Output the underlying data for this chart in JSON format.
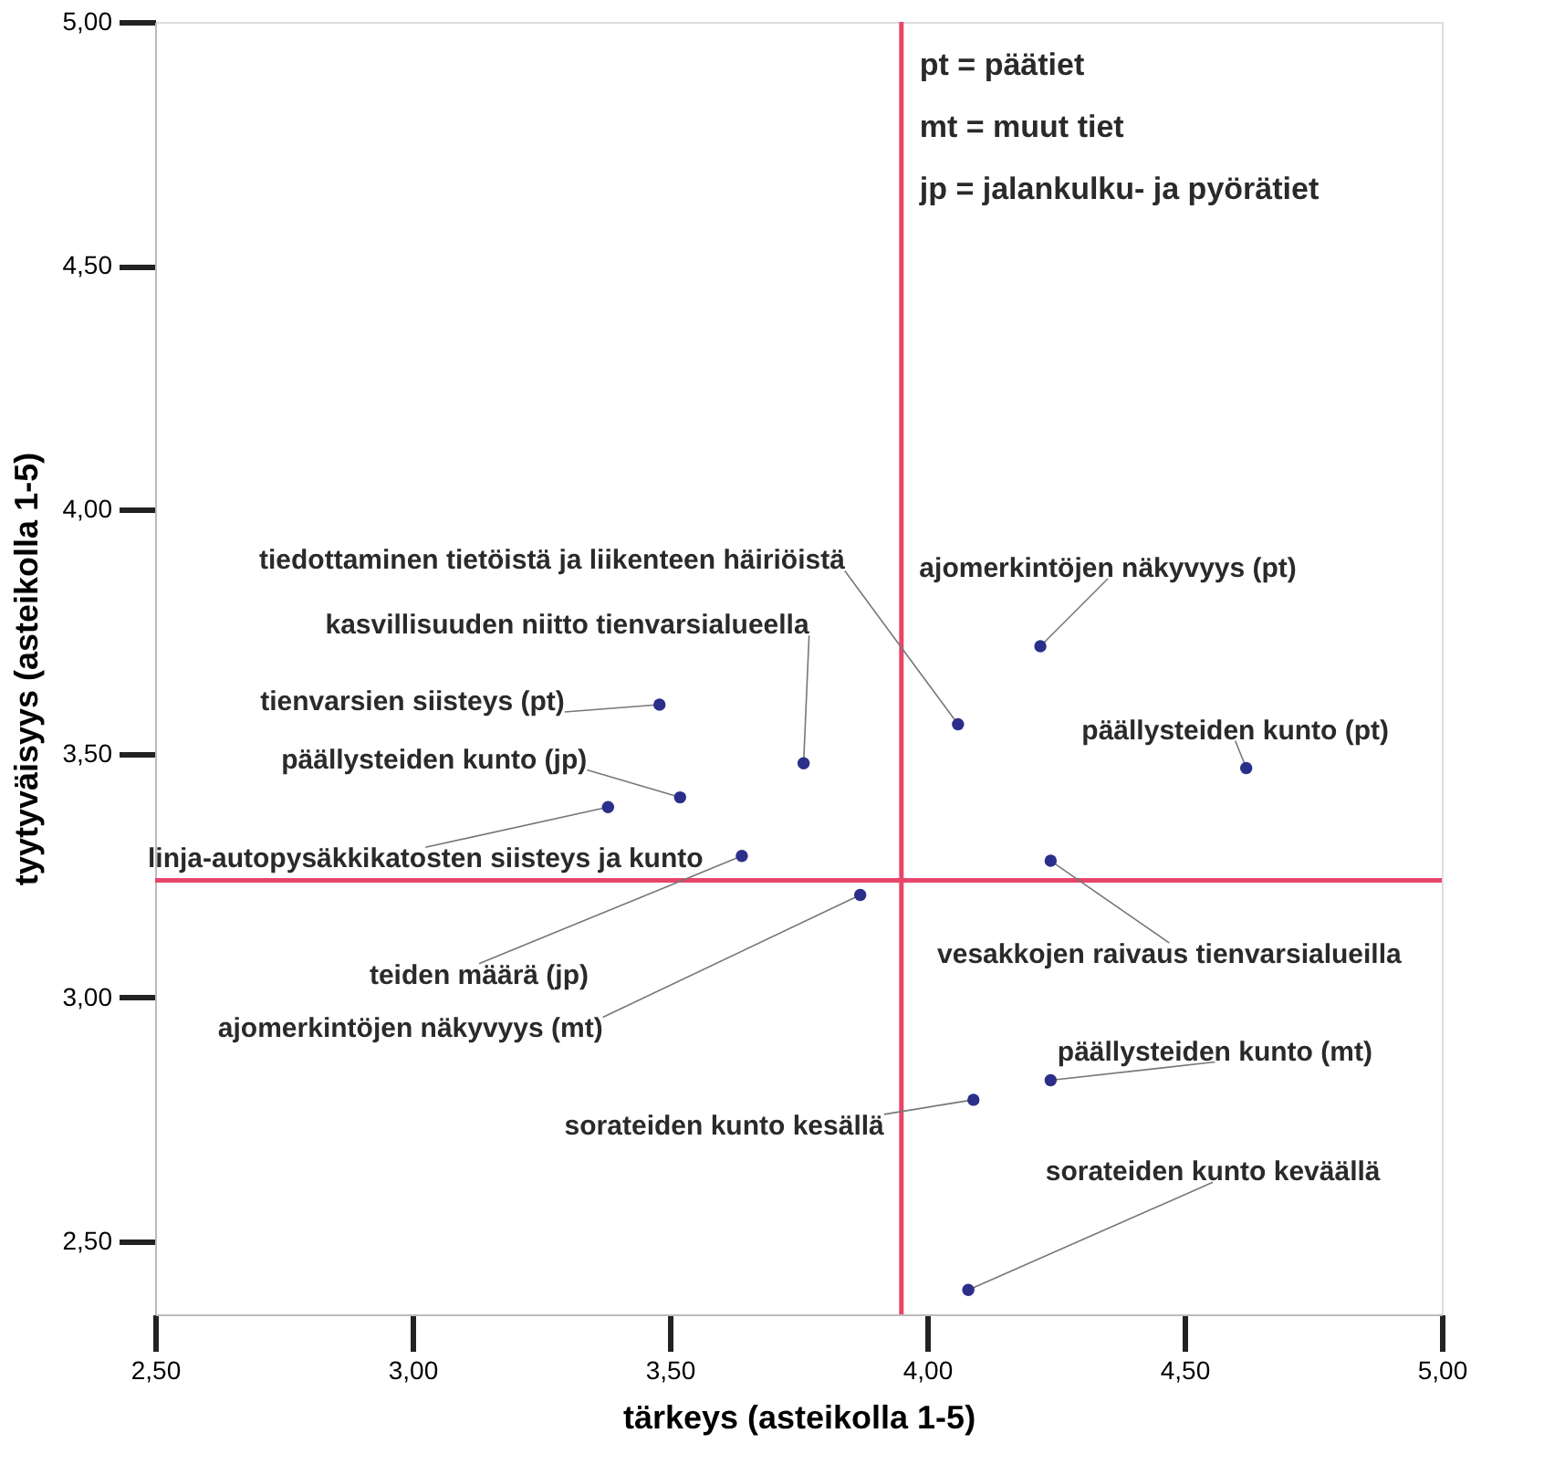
{
  "chart_data": {
    "type": "scatter",
    "xlabel": "tärkeys (asteikolla 1-5)",
    "ylabel": "tyytyväisyys (asteikolla 1-5)",
    "x": [
      4.22,
      4.06,
      3.76,
      3.48,
      4.62,
      3.52,
      3.38,
      3.64,
      3.87,
      4.24,
      4.24,
      4.09,
      4.08
    ],
    "series": [
      {
        "color": "#2b2f8a",
        "values": [
          3.72,
          3.56,
          3.48,
          3.6,
          3.47,
          3.41,
          3.39,
          3.29,
          3.21,
          3.28,
          2.83,
          2.79,
          2.4
        ]
      }
    ],
    "xlim": [
      2.5,
      5.0
    ],
    "ylim": [
      2.35,
      5.0
    ],
    "xticks": [
      {
        "value": 2.5,
        "label": "2,50"
      },
      {
        "value": 3.0,
        "label": "3,00"
      },
      {
        "value": 3.5,
        "label": "3,50"
      },
      {
        "value": 4.0,
        "label": "4,00"
      },
      {
        "value": 4.5,
        "label": "4,50"
      },
      {
        "value": 5.0,
        "label": "5,00"
      }
    ],
    "yticks": [
      {
        "value": 2.5,
        "label": "2,50"
      },
      {
        "value": 3.0,
        "label": "3,00"
      },
      {
        "value": 3.5,
        "label": "3,50"
      },
      {
        "value": 4.0,
        "label": "4,00"
      },
      {
        "value": 4.5,
        "label": "4,50"
      },
      {
        "value": 5.0,
        "label": "5,00"
      }
    ],
    "ref_lines": [
      {
        "axis": "x",
        "value": 3.95,
        "color": "#e8456a"
      },
      {
        "axis": "y",
        "value": 3.24,
        "color": "#e8456a"
      }
    ],
    "marker": "circle",
    "grid": false,
    "annotations": [
      {
        "text": "ajomerkintöjen näkyvyys (pt)",
        "x": 4.22,
        "y": 3.72
      },
      {
        "text": "tiedottaminen tietöistä ja liikenteen häiriöistä",
        "x": 4.06,
        "y": 3.56
      },
      {
        "text": "kasvillisuuden niitto tienvarsialueella",
        "x": 3.76,
        "y": 3.48
      },
      {
        "text": "tienvarsien siisteys (pt)",
        "x": 3.48,
        "y": 3.6
      },
      {
        "text": "päällysteiden kunto (pt)",
        "x": 4.62,
        "y": 3.47
      },
      {
        "text": "päällysteiden kunto (jp)",
        "x": 3.52,
        "y": 3.41
      },
      {
        "text": "linja-autopysäkkikatosten siisteys ja kunto",
        "x": 3.38,
        "y": 3.39
      },
      {
        "text": "teiden määrä (jp)",
        "x": 3.64,
        "y": 3.29
      },
      {
        "text": "ajomerkintöjen näkyvyys (mt)",
        "x": 3.87,
        "y": 3.21
      },
      {
        "text": "vesakkojen raivaus tienvarsialueilla",
        "x": 4.24,
        "y": 3.28
      },
      {
        "text": "päällysteiden kunto (mt)",
        "x": 4.24,
        "y": 2.83
      },
      {
        "text": "sorateiden kunto kesällä",
        "x": 4.09,
        "y": 2.79
      },
      {
        "text": "sorateiden kunto keväällä",
        "x": 4.08,
        "y": 2.4
      },
      "pt = päätiet",
      "mt = muut tiet",
      "jp = jalankulku- ja pyörätiet"
    ]
  }
}
